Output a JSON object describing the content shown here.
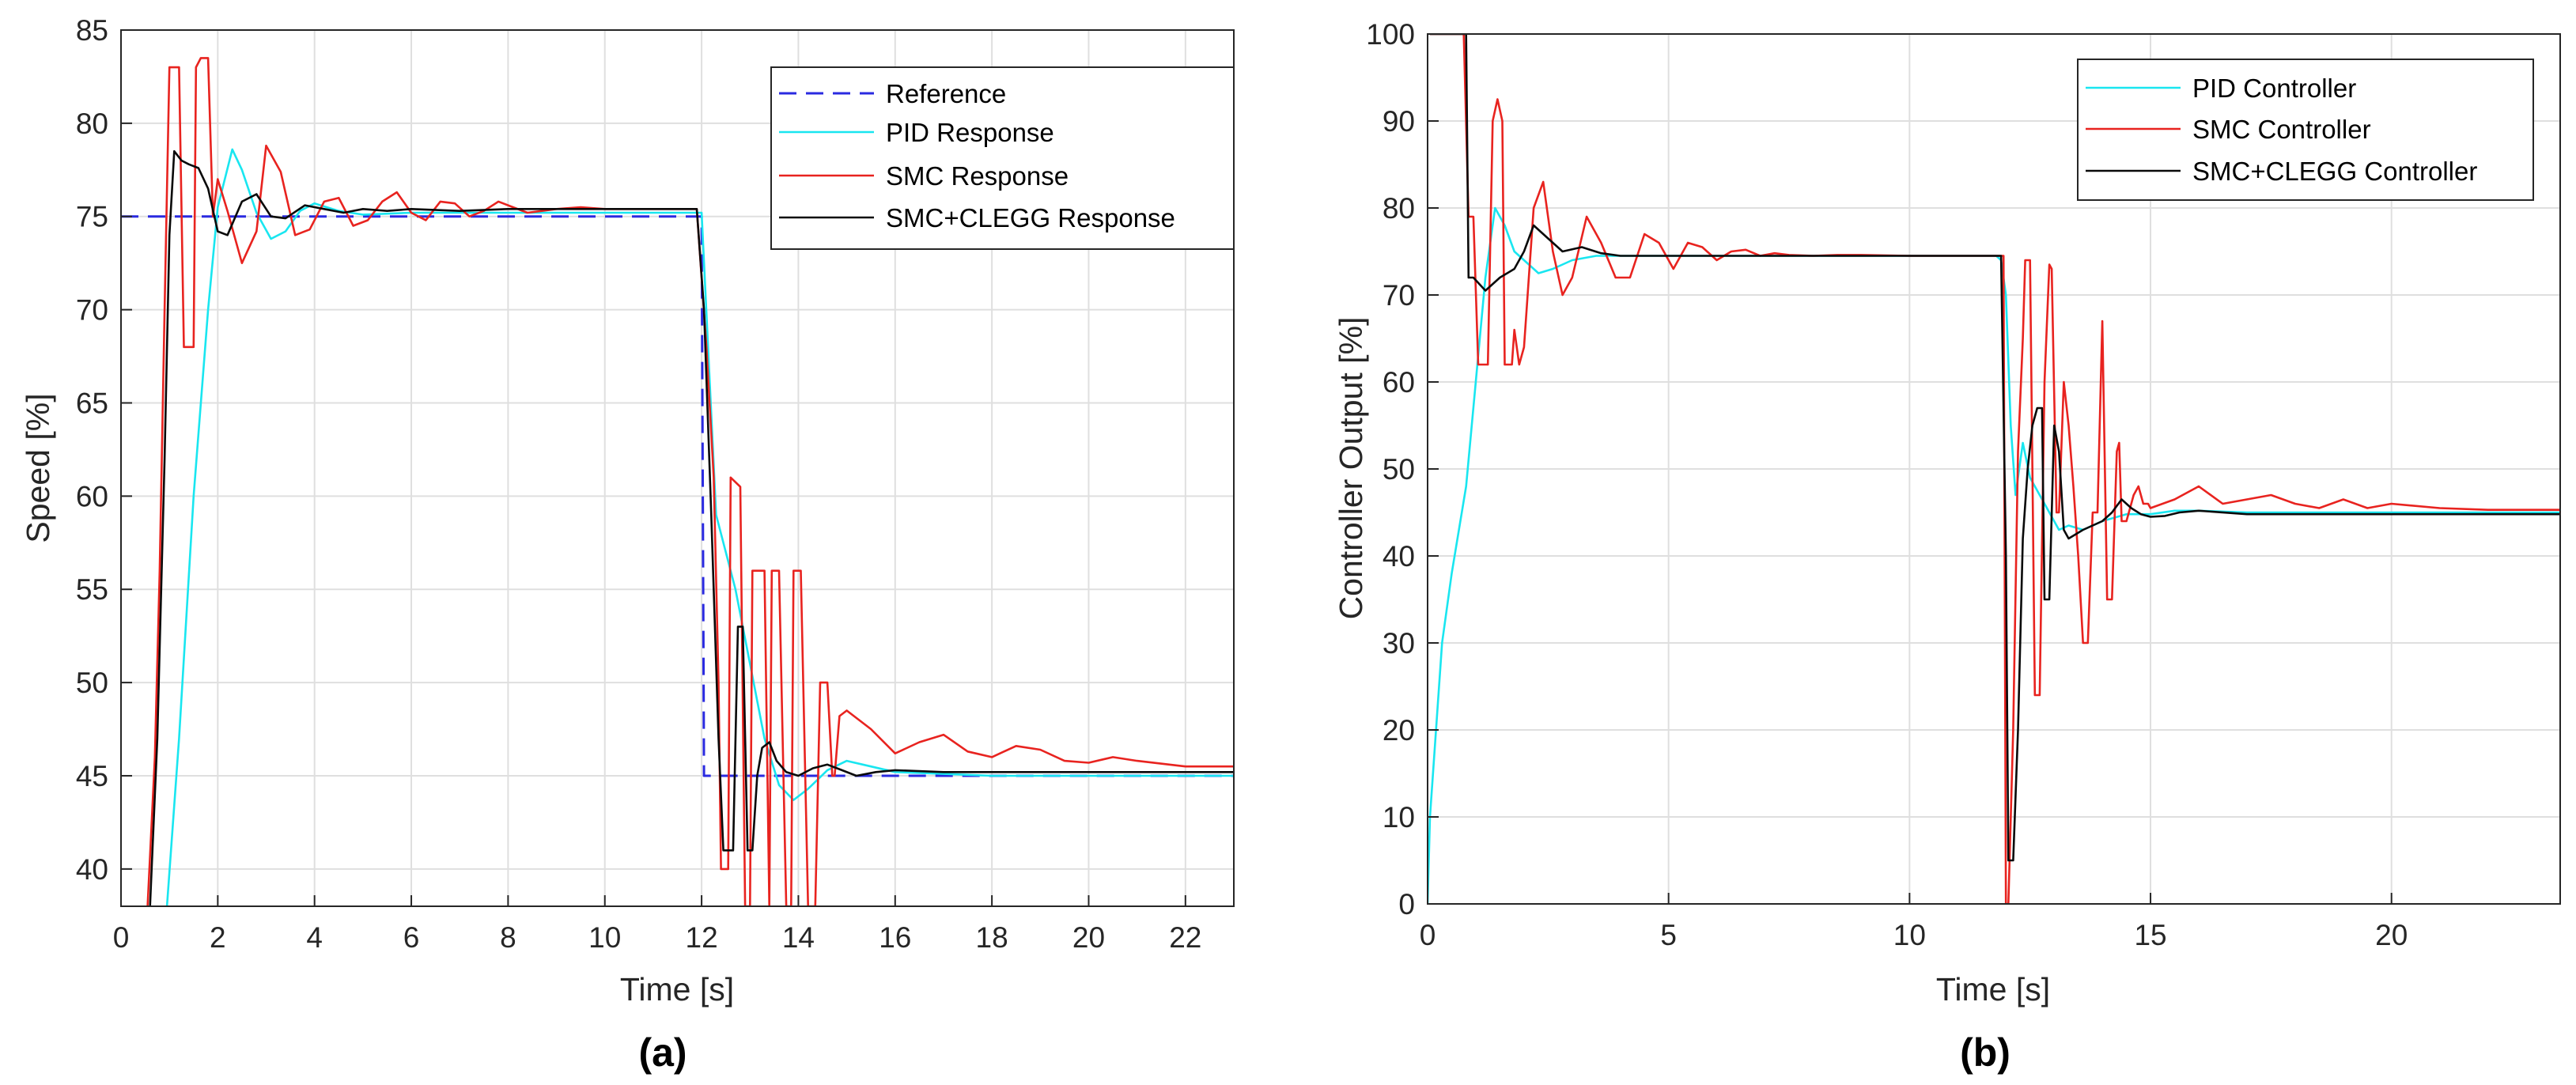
{
  "figure_captions": [
    "(a)",
    "(b)"
  ],
  "chart_data": [
    {
      "type": "line",
      "panel": "(a)",
      "title": "",
      "xlabel": "Time [s]",
      "ylabel": "Speed [%]",
      "xlim": [
        0,
        23
      ],
      "ylim": [
        38,
        85
      ],
      "xticks": [
        0,
        2,
        4,
        6,
        8,
        10,
        12,
        14,
        16,
        18,
        20,
        22
      ],
      "yticks": [
        40,
        45,
        50,
        55,
        60,
        65,
        70,
        75,
        80,
        85
      ],
      "grid": true,
      "legend_position": "top-right",
      "series": [
        {
          "name": "Reference",
          "color": "#2a2ae0",
          "style": "dashed",
          "x": [
            0,
            12.0,
            12.05,
            23
          ],
          "y": [
            75,
            75,
            45,
            45
          ]
        },
        {
          "name": "PID Response",
          "color": "#19e6f0",
          "style": "solid",
          "x": [
            0.95,
            1.2,
            1.5,
            1.8,
            2.0,
            2.3,
            2.5,
            2.8,
            3.1,
            3.4,
            3.7,
            4.0,
            4.5,
            5.0,
            6.0,
            7.0,
            8.0,
            10.0,
            11.9,
            12.0,
            12.3,
            12.7,
            13.0,
            13.3,
            13.6,
            13.9,
            14.2,
            14.6,
            15.0,
            15.5,
            16.0,
            17.0,
            18.0,
            20.0,
            23.0
          ],
          "y": [
            38,
            47,
            60,
            70,
            75.5,
            78.6,
            77.5,
            75.2,
            73.8,
            74.2,
            75.3,
            75.7,
            75.3,
            75.1,
            75.2,
            75.2,
            75.2,
            75.2,
            75.2,
            75.2,
            59,
            55,
            51,
            47,
            44.5,
            43.7,
            44.3,
            45.3,
            45.8,
            45.5,
            45.2,
            45.1,
            45.0,
            45.0,
            45.0
          ]
        },
        {
          "name": "SMC Response",
          "color": "#e8231f",
          "style": "solid",
          "x": [
            0.55,
            0.7,
            0.8,
            0.9,
            1.0,
            1.1,
            1.2,
            1.3,
            1.35,
            1.5,
            1.55,
            1.65,
            1.8,
            1.9,
            2.0,
            2.2,
            2.5,
            2.8,
            3.0,
            3.3,
            3.6,
            3.9,
            4.2,
            4.5,
            4.8,
            5.1,
            5.4,
            5.7,
            6.0,
            6.3,
            6.6,
            6.9,
            7.2,
            7.5,
            7.8,
            8.1,
            8.4,
            8.7,
            9.0,
            9.5,
            10.0,
            11.0,
            11.9,
            12.1,
            12.25,
            12.35,
            12.4,
            12.55,
            12.6,
            12.8,
            12.9,
            13.0,
            13.05,
            13.2,
            13.3,
            13.4,
            13.45,
            13.6,
            13.75,
            13.85,
            13.9,
            14.05,
            14.2,
            14.3,
            14.35,
            14.45,
            14.6,
            14.7,
            14.75,
            14.85,
            15.0,
            15.5,
            16.0,
            16.5,
            17.0,
            17.5,
            18.0,
            18.5,
            19.0,
            19.5,
            20.0,
            20.5,
            21.0,
            22.0,
            23.0
          ],
          "y": [
            38,
            46,
            56,
            70,
            83,
            83,
            83,
            68,
            68,
            68,
            83,
            83.5,
            83.5,
            75,
            77,
            75.3,
            72.5,
            74.2,
            78.8,
            77.4,
            74,
            74.3,
            75.8,
            76,
            74.5,
            74.8,
            75.8,
            76.3,
            75.2,
            74.8,
            75.8,
            75.7,
            75.0,
            75.3,
            75.8,
            75.5,
            75.2,
            75.3,
            75.4,
            75.5,
            75.4,
            75.4,
            75.4,
            68,
            61,
            50,
            40,
            40,
            61,
            60.5,
            38,
            38,
            56,
            56,
            56,
            38,
            56,
            56,
            38,
            38,
            56,
            56,
            38,
            38,
            38,
            50,
            50,
            45,
            45,
            48.2,
            48.5,
            47.5,
            46.2,
            46.8,
            47.2,
            46.3,
            46.0,
            46.6,
            46.4,
            45.8,
            45.7,
            46.0,
            45.8,
            45.5,
            45.5
          ]
        },
        {
          "name": "SMC+CLEGG Response",
          "color": "#0a0a0a",
          "style": "solid",
          "x": [
            0.6,
            0.75,
            0.9,
            1.0,
            1.1,
            1.25,
            1.4,
            1.6,
            1.8,
            2.0,
            2.2,
            2.5,
            2.8,
            3.1,
            3.4,
            3.8,
            4.2,
            4.6,
            5.0,
            5.5,
            6.0,
            7.0,
            8.0,
            9.0,
            10.0,
            11.0,
            11.9,
            12.05,
            12.2,
            12.35,
            12.45,
            12.55,
            12.65,
            12.75,
            12.85,
            12.95,
            13.05,
            13.15,
            13.25,
            13.4,
            13.55,
            13.75,
            14.0,
            14.3,
            14.6,
            14.9,
            15.2,
            15.6,
            16.0,
            17.0,
            18.0,
            20.0,
            23.0
          ],
          "y": [
            38,
            47,
            62,
            74,
            78.5,
            78,
            77.8,
            77.6,
            76.5,
            74.2,
            74.0,
            75.8,
            76.2,
            75.0,
            74.9,
            75.6,
            75.4,
            75.2,
            75.4,
            75.3,
            75.4,
            75.3,
            75.4,
            75.4,
            75.4,
            75.4,
            75.4,
            70,
            59,
            47,
            41,
            41,
            41,
            53,
            53,
            41,
            41,
            45,
            46.5,
            46.8,
            45.8,
            45.2,
            45.0,
            45.4,
            45.6,
            45.3,
            45.0,
            45.2,
            45.3,
            45.2,
            45.2,
            45.2,
            45.2
          ]
        }
      ]
    },
    {
      "type": "line",
      "panel": "(b)",
      "title": "",
      "xlabel": "Time [s]",
      "ylabel": "Controller Output [%]",
      "xlim": [
        0,
        23.5
      ],
      "ylim": [
        0,
        100
      ],
      "xticks": [
        0,
        5,
        10,
        15,
        20
      ],
      "yticks": [
        0,
        10,
        20,
        30,
        40,
        50,
        60,
        70,
        80,
        90,
        100
      ],
      "grid": true,
      "legend_position": "top-right",
      "series": [
        {
          "name": "PID Controller",
          "color": "#19e6f0",
          "style": "solid",
          "x": [
            0,
            0.05,
            0.3,
            0.5,
            0.8,
            1.0,
            1.2,
            1.4,
            1.6,
            1.8,
            2.0,
            2.3,
            2.6,
            3.0,
            3.5,
            4.0,
            5.0,
            6.0,
            8.0,
            10.0,
            11.8,
            11.9,
            12.0,
            12.1,
            12.2,
            12.35,
            12.5,
            12.7,
            12.9,
            13.1,
            13.3,
            13.6,
            14.0,
            14.5,
            15.0,
            15.5,
            16.0,
            17.0,
            20.0,
            23.5
          ],
          "y": [
            0,
            10,
            30,
            38,
            48,
            60,
            72,
            80,
            78,
            75,
            74,
            72.5,
            73,
            74,
            74.5,
            74.5,
            74.5,
            74.5,
            74.5,
            74.5,
            74.5,
            74,
            70,
            55,
            47,
            53,
            49,
            47,
            45,
            43,
            43.5,
            43,
            44,
            44.8,
            44.8,
            45.2,
            45.2,
            45,
            45,
            45
          ]
        },
        {
          "name": "SMC Controller",
          "color": "#e8231f",
          "style": "solid",
          "x": [
            0.05,
            0.1,
            0.75,
            0.85,
            0.95,
            1.05,
            1.15,
            1.25,
            1.35,
            1.45,
            1.55,
            1.6,
            1.75,
            1.8,
            1.9,
            2.0,
            2.2,
            2.4,
            2.6,
            2.8,
            3.0,
            3.3,
            3.6,
            3.9,
            4.2,
            4.5,
            4.8,
            5.1,
            5.4,
            5.7,
            6.0,
            6.3,
            6.6,
            6.9,
            7.2,
            7.5,
            8.0,
            8.5,
            9.0,
            10.0,
            11.0,
            11.95,
            12.0,
            12.05,
            12.15,
            12.25,
            12.35,
            12.4,
            12.5,
            12.55,
            12.6,
            12.7,
            12.8,
            12.9,
            12.95,
            13.05,
            13.1,
            13.2,
            13.3,
            13.4,
            13.5,
            13.6,
            13.7,
            13.8,
            13.9,
            14.0,
            14.1,
            14.2,
            14.3,
            14.35,
            14.4,
            14.5,
            14.6,
            14.65,
            14.75,
            14.85,
            14.95,
            15.0,
            15.5,
            16.0,
            16.5,
            17.0,
            17.5,
            18.0,
            18.5,
            19.0,
            19.5,
            20.0,
            21.0,
            22.0,
            23.5
          ],
          "y": [
            100,
            100,
            100,
            79,
            79,
            62,
            62,
            62,
            90,
            92.5,
            90,
            62,
            62,
            66,
            62,
            64,
            80,
            83,
            75,
            70,
            72,
            79,
            76,
            72,
            72,
            77,
            76,
            73,
            76,
            75.5,
            74,
            75,
            75.2,
            74.5,
            74.8,
            74.6,
            74.5,
            74.6,
            74.6,
            74.5,
            74.5,
            74.5,
            0,
            0,
            20,
            52,
            65,
            74,
            74,
            50,
            24,
            24,
            60,
            73.5,
            73,
            45,
            45,
            60,
            55,
            48,
            40,
            30,
            30,
            45,
            45,
            67,
            35,
            35,
            52,
            53,
            44,
            44,
            46,
            47,
            48,
            46,
            46,
            45.5,
            46.5,
            48,
            46,
            46.5,
            47,
            46,
            45.5,
            46.5,
            45.5,
            46,
            45.5,
            45.3,
            45.3
          ]
        },
        {
          "name": "SMC+CLEGG Controller",
          "color": "#0a0a0a",
          "style": "solid",
          "x": [
            0.05,
            0.1,
            0.8,
            0.85,
            0.95,
            1.2,
            1.5,
            1.8,
            2.0,
            2.2,
            2.5,
            2.8,
            3.2,
            3.6,
            4.0,
            5.0,
            6.0,
            8.0,
            10.0,
            11.9,
            12.0,
            12.05,
            12.15,
            12.25,
            12.35,
            12.45,
            12.55,
            12.65,
            12.75,
            12.8,
            12.9,
            13.0,
            13.1,
            13.2,
            13.3,
            13.45,
            13.6,
            13.8,
            14.0,
            14.2,
            14.4,
            14.6,
            14.8,
            15.0,
            15.3,
            15.6,
            16.0,
            17.0,
            20.0,
            23.5
          ],
          "y": [
            100,
            100,
            100,
            72,
            72,
            70.5,
            72,
            73,
            75,
            78,
            76.5,
            75,
            75.5,
            74.8,
            74.5,
            74.5,
            74.5,
            74.5,
            74.5,
            74.5,
            40,
            5,
            5,
            20,
            42,
            50,
            55,
            57,
            57,
            35,
            35,
            55,
            52,
            43,
            42,
            42.5,
            43,
            43.5,
            44,
            45,
            46.5,
            45.5,
            44.8,
            44.5,
            44.6,
            45.0,
            45.2,
            44.8,
            44.8,
            44.8
          ]
        }
      ]
    }
  ]
}
